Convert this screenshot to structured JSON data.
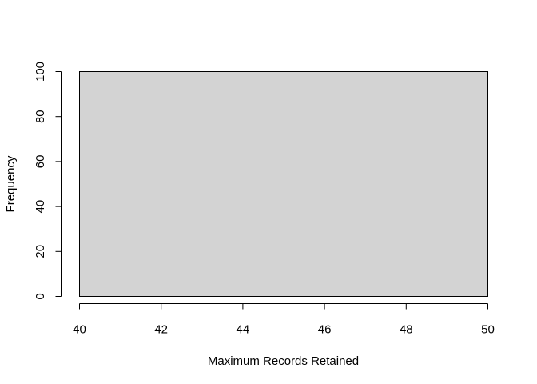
{
  "chart_data": {
    "type": "bar",
    "subtype": "histogram",
    "title": "",
    "xlabel": "Maximum Records Retained",
    "ylabel": "Frequency",
    "bins": [
      {
        "x0": 40,
        "x1": 50,
        "count": 100
      }
    ],
    "xlim": [
      40,
      50
    ],
    "ylim": [
      0,
      100
    ],
    "xticks": [
      40,
      42,
      44,
      46,
      48,
      50
    ],
    "yticks": [
      0,
      20,
      40,
      60,
      80,
      100
    ],
    "bar_fill": "#d3d3d3",
    "bar_stroke": "#000000",
    "axis_color": "#000000",
    "grid": false,
    "legend": "none"
  }
}
